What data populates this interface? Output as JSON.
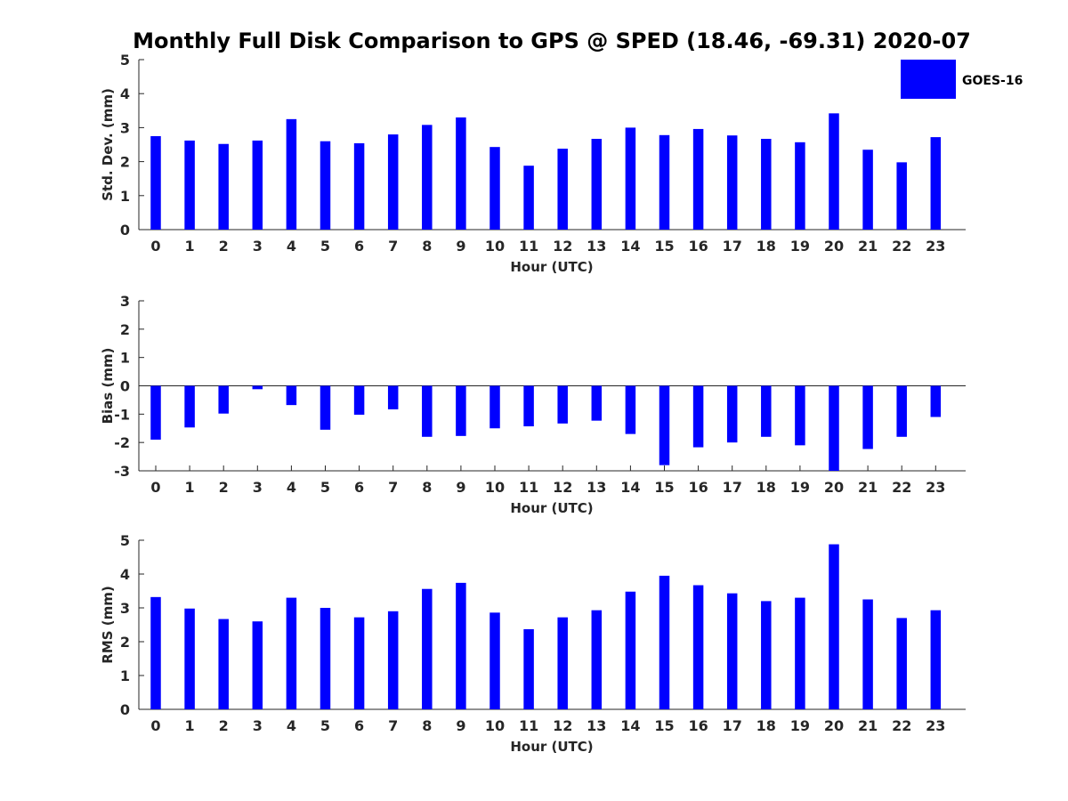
{
  "figure_title": "Monthly Full Disk Comparison to GPS @ SPED (18.46, -69.31) 2020-07",
  "legend": {
    "label": "GOES-16",
    "color": "#0000ff"
  },
  "chart_data": [
    {
      "type": "bar",
      "title": "Monthly Full Disk Comparison to GPS @ SPED (18.46, -69.31) 2020-07",
      "xlabel": "Hour (UTC)",
      "ylabel": "Std. Dev. (mm)",
      "ylim": [
        0,
        5
      ],
      "yticks": [
        0,
        1,
        2,
        3,
        4,
        5
      ],
      "categories": [
        "0",
        "1",
        "2",
        "3",
        "4",
        "5",
        "6",
        "7",
        "8",
        "9",
        "10",
        "11",
        "12",
        "13",
        "14",
        "15",
        "16",
        "17",
        "18",
        "19",
        "20",
        "21",
        "22",
        "23"
      ],
      "series": [
        {
          "name": "GOES-16",
          "color": "#0000ff",
          "values": [
            2.75,
            2.62,
            2.52,
            2.62,
            3.25,
            2.6,
            2.54,
            2.8,
            3.08,
            3.3,
            2.43,
            1.88,
            2.38,
            2.67,
            3.0,
            2.78,
            2.96,
            2.77,
            2.67,
            2.57,
            3.42,
            2.35,
            1.98,
            2.72
          ]
        }
      ],
      "legend_position": "top-right",
      "grid": false
    },
    {
      "type": "bar",
      "title": "",
      "xlabel": "Hour (UTC)",
      "ylabel": "Bias (mm)",
      "ylim": [
        -3,
        3
      ],
      "yticks": [
        -3,
        -2,
        -1,
        0,
        1,
        2,
        3
      ],
      "categories": [
        "0",
        "1",
        "2",
        "3",
        "4",
        "5",
        "6",
        "7",
        "8",
        "9",
        "10",
        "11",
        "12",
        "13",
        "14",
        "15",
        "16",
        "17",
        "18",
        "19",
        "20",
        "21",
        "22",
        "23"
      ],
      "series": [
        {
          "name": "GOES-16",
          "color": "#0000ff",
          "values": [
            -1.9,
            -1.47,
            -0.98,
            -0.12,
            -0.68,
            -1.55,
            -1.02,
            -0.83,
            -1.8,
            -1.77,
            -1.5,
            -1.43,
            -1.33,
            -1.23,
            -1.7,
            -2.8,
            -2.17,
            -2.0,
            -1.8,
            -2.1,
            -3.0,
            -2.23,
            -1.8,
            -1.1
          ]
        }
      ],
      "grid": false
    },
    {
      "type": "bar",
      "title": "",
      "xlabel": "Hour (UTC)",
      "ylabel": "RMS (mm)",
      "ylim": [
        0,
        5
      ],
      "yticks": [
        0,
        1,
        2,
        3,
        4,
        5
      ],
      "categories": [
        "0",
        "1",
        "2",
        "3",
        "4",
        "5",
        "6",
        "7",
        "8",
        "9",
        "10",
        "11",
        "12",
        "13",
        "14",
        "15",
        "16",
        "17",
        "18",
        "19",
        "20",
        "21",
        "22",
        "23"
      ],
      "series": [
        {
          "name": "GOES-16",
          "color": "#0000ff",
          "values": [
            3.32,
            2.98,
            2.67,
            2.6,
            3.3,
            3.0,
            2.72,
            2.9,
            3.56,
            3.74,
            2.86,
            2.37,
            2.72,
            2.93,
            3.48,
            3.95,
            3.67,
            3.43,
            3.2,
            3.3,
            4.88,
            3.25,
            2.7,
            2.93
          ]
        }
      ],
      "grid": false
    }
  ]
}
